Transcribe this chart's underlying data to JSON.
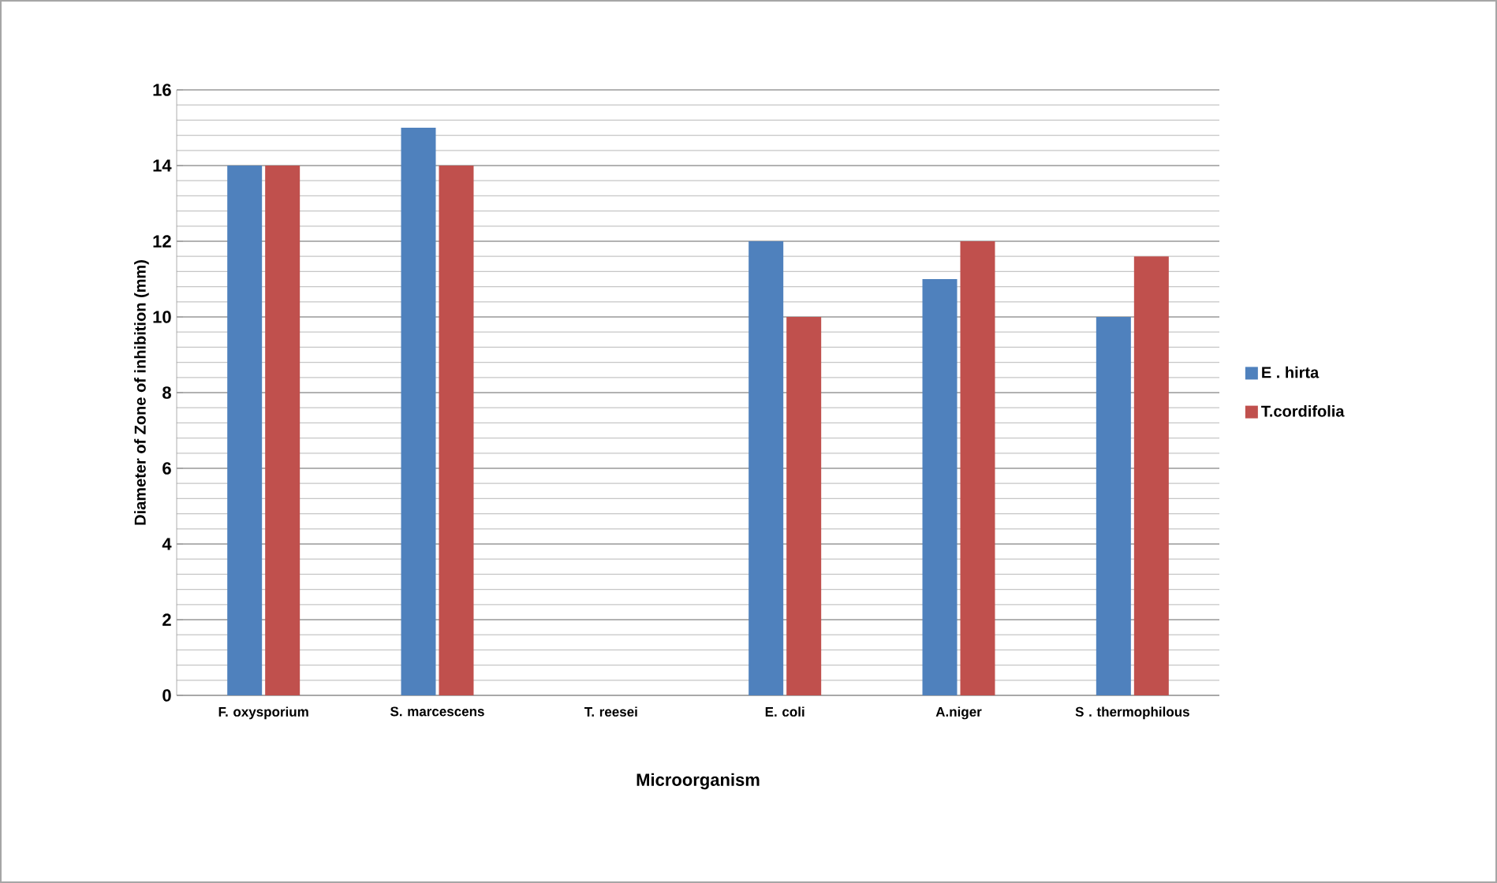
{
  "chart_data": {
    "type": "bar",
    "xlabel": "Microorganism",
    "ylabel": "Diameter of  Zone of  inhibition (mm)",
    "categories": [
      "F. oxysporium",
      "S. marcescens",
      "T. reesei",
      "E. coli",
      "A.niger",
      "S . thermophilous"
    ],
    "series": [
      {
        "name": "E . hirta",
        "color": "#4f81bd",
        "values": [
          14,
          15,
          0,
          12,
          11,
          10
        ]
      },
      {
        "name": "T.cordifolia",
        "color": "#c0504d",
        "values": [
          14,
          14,
          0,
          10,
          12,
          11.6
        ]
      }
    ],
    "ylim": [
      0,
      16
    ],
    "yticks": [
      0,
      2,
      4,
      6,
      8,
      10,
      12,
      14,
      16
    ],
    "grid": "y",
    "legend": "right"
  }
}
